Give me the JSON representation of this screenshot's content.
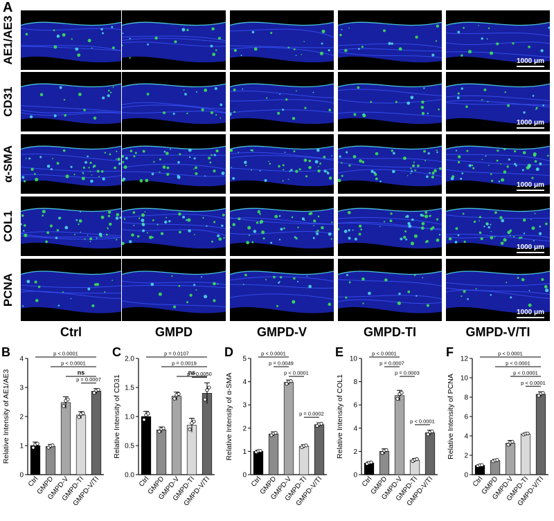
{
  "panel_a": {
    "letter": "A",
    "rows": [
      "AE1/AE3",
      "CD31",
      "α-SMA",
      "COL1",
      "PCNA"
    ],
    "columns": [
      "Ctrl",
      "GMPD",
      "GMPD-V",
      "GMPD-TI",
      "GMPD-V/TI"
    ],
    "scale_bar": "1000 μm"
  },
  "chart_data": [
    {
      "panel": "B",
      "type": "bar",
      "categories": [
        "Ctrl",
        "GMPD",
        "GMPD-V",
        "GMPD-TI",
        "GMPD-V/TI"
      ],
      "values": [
        1.0,
        0.97,
        2.48,
        2.05,
        2.87
      ],
      "errors": [
        0.12,
        0.07,
        0.2,
        0.12,
        0.09
      ],
      "ylabel": "Relative Intensity of AE1/AE3",
      "ylim": [
        0,
        4
      ],
      "yticks": [
        0,
        1,
        2,
        3,
        4
      ],
      "comparisons": [
        {
          "from": 0,
          "to": 4,
          "label": "p < 0.0001"
        },
        {
          "from": 1,
          "to": 4,
          "label": "p < 0.0001"
        },
        {
          "from": 2,
          "to": 4,
          "label": "ns"
        },
        {
          "from": 3,
          "to": 4,
          "label": "p = 0.0007"
        }
      ]
    },
    {
      "panel": "C",
      "type": "bar",
      "categories": [
        "Ctrl",
        "GMPD",
        "GMPD-V",
        "GMPD-TI",
        "GMPD-V/TI"
      ],
      "values": [
        1.0,
        0.77,
        1.35,
        0.85,
        1.4
      ],
      "errors": [
        0.09,
        0.05,
        0.07,
        0.12,
        0.18
      ],
      "ylabel": "Relative Intensity of CD31",
      "ylim": [
        0,
        2.0
      ],
      "yticks": [
        0,
        0.5,
        1.0,
        1.5,
        2.0
      ],
      "comparisons": [
        {
          "from": 0,
          "to": 4,
          "label": "p = 0.0107"
        },
        {
          "from": 1,
          "to": 4,
          "label": "p = 0.0019"
        },
        {
          "from": 2,
          "to": 4,
          "label": "ns"
        },
        {
          "from": 3,
          "to": 4,
          "label": "p = 0.0050"
        }
      ]
    },
    {
      "panel": "D",
      "type": "bar",
      "categories": [
        "Ctrl",
        "GMPD",
        "GMPD-V",
        "GMPD-TI",
        "GMPD-V/TI"
      ],
      "values": [
        1.0,
        1.75,
        3.97,
        1.22,
        2.15
      ],
      "errors": [
        0.05,
        0.09,
        0.1,
        0.07,
        0.08
      ],
      "ylabel": "Relative Intensity of α-SMA",
      "ylim": [
        0,
        5
      ],
      "yticks": [
        0,
        1,
        2,
        3,
        4,
        5
      ],
      "comparisons": [
        {
          "from": 0,
          "to": 2,
          "label": "p < 0.0001"
        },
        {
          "from": 1,
          "to": 2,
          "label": "p = 0.0049"
        },
        {
          "from": 2,
          "to": 3,
          "label": "p < 0.0001"
        },
        {
          "from": 3,
          "to": 4,
          "label": "p = 0.0002"
        }
      ]
    },
    {
      "panel": "E",
      "type": "bar",
      "categories": [
        "Ctrl",
        "GMPD",
        "GMPD-V",
        "GMPD-TI",
        "GMPD-V/TI"
      ],
      "values": [
        1.0,
        2.0,
        6.8,
        1.25,
        3.6
      ],
      "errors": [
        0.1,
        0.22,
        0.45,
        0.15,
        0.22
      ],
      "ylabel": "Relative Intensity of COL1",
      "ylim": [
        0,
        10
      ],
      "yticks": [
        0,
        2,
        4,
        6,
        8,
        10
      ],
      "comparisons": [
        {
          "from": 0,
          "to": 2,
          "label": "p < 0.0001"
        },
        {
          "from": 1,
          "to": 2,
          "label": "p = 0.0007"
        },
        {
          "from": 2,
          "to": 3,
          "label": "p = 0.0003"
        },
        {
          "from": 3,
          "to": 4,
          "label": "p < 0.0001"
        }
      ]
    },
    {
      "panel": "F",
      "type": "bar",
      "categories": [
        "Ctrl",
        "GMPD",
        "GMPD-V",
        "GMPD-TI",
        "GMPD-V/TI"
      ],
      "values": [
        0.95,
        1.45,
        3.25,
        4.2,
        8.3
      ],
      "errors": [
        0.08,
        0.12,
        0.28,
        0.1,
        0.25
      ],
      "ylabel": "Relative Intensity of PCNA",
      "ylim": [
        0,
        12
      ],
      "yticks": [
        0,
        2,
        4,
        6,
        8,
        10,
        12
      ],
      "comparisons": [
        {
          "from": 0,
          "to": 4,
          "label": "p < 0.0001"
        },
        {
          "from": 1,
          "to": 4,
          "label": "p < 0.0001"
        },
        {
          "from": 2,
          "to": 4,
          "label": "p < 0.0001"
        },
        {
          "from": 3,
          "to": 4,
          "label": "p < 0.0001"
        }
      ]
    }
  ],
  "colors": {
    "bars": [
      "#000000",
      "#8c8c8c",
      "#a6a6a6",
      "#d9d9d9",
      "#666666"
    ],
    "tissue_blue": "#1f2bd6",
    "signal_green": "#3ee05a",
    "signal_cyan": "#4fd6e8"
  }
}
